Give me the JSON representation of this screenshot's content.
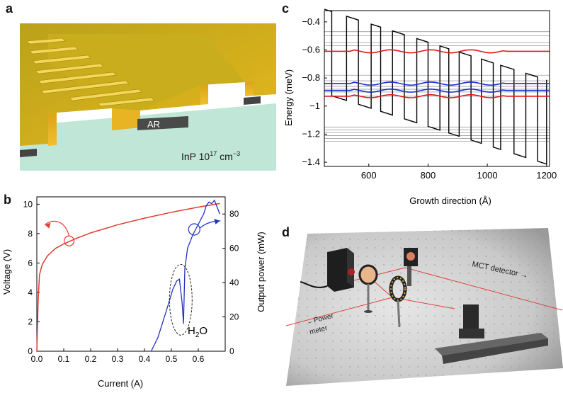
{
  "panel_labels": {
    "a": "a",
    "b": "b",
    "c": "c",
    "d": "d"
  },
  "panel_a": {
    "ar_label": "AR",
    "substrate_label": "InP 10",
    "substrate_exp": "17",
    "substrate_unit": " cm",
    "substrate_unit_exp": "−3"
  },
  "panel_d": {
    "mct_label": "MCT detector →",
    "power_label_1": "←Power",
    "power_label_2": "meter"
  },
  "colors": {
    "voltage": "#e23a2e",
    "power": "#2233bb",
    "red_band": "#e01818",
    "blue_band": "#1a2fd0"
  },
  "chart_data": [
    {
      "id": "panel-b",
      "type": "line",
      "xlabel": "Current (A)",
      "ylabel": "Voltage (V)",
      "y2label": "Output power (mW)",
      "xlim": [
        0,
        0.7
      ],
      "ylim": [
        0,
        10.5
      ],
      "y2lim": [
        0,
        90
      ],
      "xticks": [
        "0.0",
        "0.1",
        "0.2",
        "0.3",
        "0.4",
        "0.5",
        "0.6"
      ],
      "yticks": [
        "0",
        "2",
        "4",
        "6",
        "8",
        "10"
      ],
      "y2ticks": [
        "0",
        "20",
        "40",
        "60",
        "80"
      ],
      "annotation": {
        "base": "H",
        "sub": "2",
        "tail": "O"
      },
      "series": [
        {
          "name": "Voltage",
          "axis": "left",
          "x": [
            0,
            0.005,
            0.01,
            0.02,
            0.04,
            0.07,
            0.1,
            0.15,
            0.2,
            0.3,
            0.4,
            0.5,
            0.6,
            0.68
          ],
          "y": [
            0,
            3.5,
            5.2,
            5.9,
            6.5,
            7.0,
            7.3,
            7.7,
            8.05,
            8.6,
            9.05,
            9.45,
            9.8,
            10.05
          ]
        },
        {
          "name": "Output power",
          "axis": "right",
          "x": [
            0.425,
            0.45,
            0.47,
            0.49,
            0.505,
            0.52,
            0.53,
            0.535,
            0.54,
            0.545,
            0.55,
            0.56,
            0.57,
            0.58,
            0.6,
            0.62,
            0.63,
            0.64,
            0.65,
            0.66,
            0.67,
            0.68
          ],
          "y": [
            0,
            8,
            18,
            28,
            36,
            41,
            42,
            35,
            28,
            16,
            48,
            60,
            64,
            68,
            74,
            80,
            85,
            87,
            86,
            88,
            84,
            80
          ]
        }
      ]
    },
    {
      "id": "panel-c",
      "type": "line",
      "xlabel": "Growth direction (Å)",
      "ylabel": "Energy (meV)",
      "xlim": [
        450,
        1210
      ],
      "ylim": [
        -1.43,
        -0.32
      ],
      "xticks": [
        "600",
        "800",
        "1000",
        "1200"
      ],
      "yticks": [
        "−0.4",
        "−0.6",
        "−0.8",
        "−1",
        "−1.2",
        "−1.4"
      ],
      "barrier_x": [
        475,
        525,
        565,
        608,
        640,
        680,
        720,
        762,
        800,
        840,
        870,
        905,
        945,
        980,
        1020,
        1045,
        1090,
        1130,
        1170,
        1200
      ],
      "conduction_band": {
        "start": -0.31,
        "end": -0.82,
        "barrier_height": 0.6
      },
      "gray_levels": [
        -0.47,
        -0.5,
        -0.55,
        -0.57,
        -0.78,
        -0.82,
        -0.86,
        -0.88,
        -0.9,
        -0.93,
        -1.15,
        -1.17,
        -1.19,
        -1.21,
        -1.23,
        -1.25
      ],
      "series": [
        {
          "name": "red-level-1",
          "color": "red",
          "level": -0.61
        },
        {
          "name": "red-level-2",
          "color": "red",
          "level": -0.93
        },
        {
          "name": "blue-level-1",
          "color": "blue",
          "level": -0.84
        },
        {
          "name": "blue-level-2",
          "color": "blue",
          "level": -0.89
        }
      ]
    }
  ]
}
